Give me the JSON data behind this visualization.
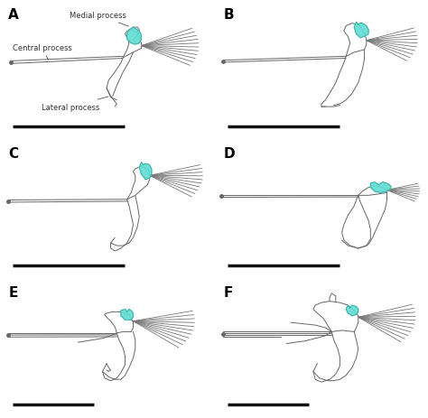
{
  "background_color": "#ffffff",
  "panel_labels": [
    "A",
    "B",
    "C",
    "D",
    "E",
    "F"
  ],
  "panel_label_fontsize": 11,
  "panel_label_weight": "bold",
  "annotation_fontsize": 6,
  "teal_fill": "#5eddd4",
  "line_color": "#666666",
  "line_width": 0.7,
  "scale_bar_color": "#111111",
  "scale_bar_lw": 2.0
}
